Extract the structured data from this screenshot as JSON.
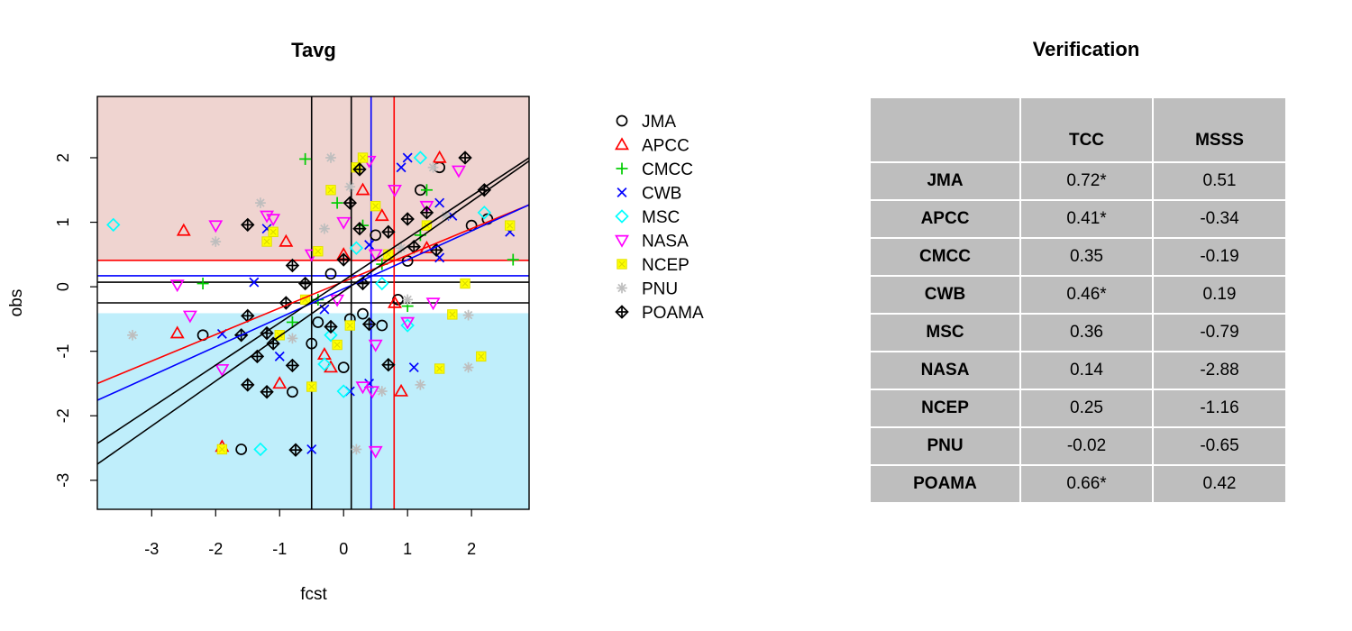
{
  "chart_data": [
    {
      "type": "scatter",
      "title": "Tavg",
      "xlabel": "fcst",
      "ylabel": "obs",
      "xlim": [
        -3.85,
        2.9
      ],
      "ylim": [
        -3.45,
        2.95
      ],
      "x_ticks": [
        -3,
        -2,
        -1,
        0,
        1,
        2
      ],
      "y_ticks": [
        -3,
        -2,
        -1,
        0,
        1,
        2
      ],
      "upper_tercile_shading": {
        "y_from": 0.41,
        "color": "#efd4d0"
      },
      "lower_tercile_shading": {
        "y_to": -0.41,
        "color": "#bfeefb"
      },
      "colors": {
        "JMA": "#000000",
        "APCC": "#ff0000",
        "CMCC": "#00cd00",
        "CWB": "#0000ff",
        "MSC": "#00ffff",
        "NASA": "#ff00ff",
        "NCEP": "#ffff00",
        "PNU": "#bebebe",
        "POAMA": "#000000"
      },
      "reference_lines": {
        "horizontal": [
          {
            "y": 0.41,
            "color": "#ff0000"
          },
          {
            "y": 0.17,
            "color": "#0000ff"
          },
          {
            "y": 0.07,
            "color": "#000000"
          },
          {
            "y": -0.25,
            "color": "#000000"
          }
        ],
        "vertical": [
          {
            "x": -0.5,
            "color": "#000000"
          },
          {
            "x": 0.12,
            "color": "#000000"
          },
          {
            "x": 0.43,
            "color": "#0000ff"
          },
          {
            "x": 0.79,
            "color": "#ff0000"
          }
        ]
      },
      "regression_lines": [
        {
          "series": "APCC",
          "color": "#ff0000",
          "points": [
            [
              -3.85,
              -1.5
            ],
            [
              2.9,
              1.27
            ]
          ]
        },
        {
          "series": "CWB",
          "color": "#0000ff",
          "points": [
            [
              -3.85,
              -1.76
            ],
            [
              2.9,
              1.27
            ]
          ]
        },
        {
          "series": "JMA",
          "color": "#000000",
          "points": [
            [
              -3.85,
              -2.43
            ],
            [
              2.9,
              2.0
            ]
          ]
        },
        {
          "series": "POAMA",
          "color": "#000000",
          "points": [
            [
              -3.85,
              -2.75
            ],
            [
              2.9,
              1.95
            ]
          ]
        }
      ],
      "legend": {
        "position": "right",
        "entries": [
          "JMA",
          "APCC",
          "CMCC",
          "CWB",
          "MSC",
          "NASA",
          "NCEP",
          "PNU",
          "POAMA"
        ]
      },
      "series": [
        {
          "name": "JMA",
          "marker": "circle",
          "points": [
            [
              -2.2,
              -0.75
            ],
            [
              -1.6,
              -2.52
            ],
            [
              -0.4,
              -0.55
            ],
            [
              -0.5,
              -0.88
            ],
            [
              -0.8,
              -1.63
            ],
            [
              0.0,
              -1.25
            ],
            [
              0.1,
              -0.5
            ],
            [
              0.3,
              -0.42
            ],
            [
              0.6,
              -0.6
            ],
            [
              0.85,
              -0.2
            ],
            [
              1.0,
              0.4
            ],
            [
              1.2,
              1.5
            ],
            [
              1.5,
              1.85
            ],
            [
              2.0,
              0.95
            ],
            [
              2.25,
              1.05
            ],
            [
              0.5,
              0.8
            ],
            [
              -0.2,
              0.2
            ]
          ]
        },
        {
          "name": "APCC",
          "marker": "triangle",
          "points": [
            [
              -2.5,
              0.87
            ],
            [
              -2.6,
              -0.72
            ],
            [
              -1.9,
              -2.48
            ],
            [
              -0.9,
              0.7
            ],
            [
              -1.0,
              -1.5
            ],
            [
              -0.3,
              -1.05
            ],
            [
              0.3,
              1.5
            ],
            [
              0.6,
              1.1
            ],
            [
              0.8,
              -0.25
            ],
            [
              0.9,
              -1.62
            ],
            [
              1.3,
              0.6
            ],
            [
              1.5,
              2.0
            ],
            [
              0.0,
              0.5
            ],
            [
              -0.2,
              -1.25
            ]
          ]
        },
        {
          "name": "CMCC",
          "marker": "plus",
          "points": [
            [
              -2.2,
              0.05
            ],
            [
              -0.6,
              1.98
            ],
            [
              -0.8,
              -0.55
            ],
            [
              -0.1,
              1.3
            ],
            [
              0.3,
              0.95
            ],
            [
              0.6,
              0.35
            ],
            [
              1.0,
              -0.3
            ],
            [
              1.3,
              1.5
            ],
            [
              2.65,
              0.42
            ],
            [
              -0.4,
              -0.2
            ],
            [
              1.2,
              0.8
            ]
          ]
        },
        {
          "name": "CWB",
          "marker": "cross",
          "points": [
            [
              -1.9,
              -0.73
            ],
            [
              -1.2,
              0.9
            ],
            [
              -1.4,
              0.07
            ],
            [
              -1.0,
              -1.08
            ],
            [
              -0.5,
              -2.52
            ],
            [
              0.1,
              -1.62
            ],
            [
              0.4,
              -1.5
            ],
            [
              0.9,
              1.85
            ],
            [
              1.0,
              2.0
            ],
            [
              1.5,
              1.3
            ],
            [
              1.7,
              1.1
            ],
            [
              2.6,
              0.85
            ],
            [
              1.1,
              -1.25
            ],
            [
              0.4,
              0.65
            ],
            [
              -0.3,
              -0.35
            ],
            [
              1.5,
              0.45
            ]
          ]
        },
        {
          "name": "MSC",
          "marker": "diamond",
          "points": [
            [
              -3.6,
              0.96
            ],
            [
              -1.3,
              -2.52
            ],
            [
              -0.3,
              -1.2
            ],
            [
              0.0,
              -1.62
            ],
            [
              0.6,
              0.05
            ],
            [
              1.0,
              -0.6
            ],
            [
              1.2,
              2.0
            ],
            [
              2.2,
              1.15
            ],
            [
              -0.2,
              -0.75
            ],
            [
              0.2,
              0.6
            ]
          ]
        },
        {
          "name": "NASA",
          "marker": "triangle-down",
          "points": [
            [
              -2.6,
              0.03
            ],
            [
              -2.0,
              0.95
            ],
            [
              -2.4,
              -0.45
            ],
            [
              -1.9,
              -1.28
            ],
            [
              -1.2,
              1.1
            ],
            [
              -1.1,
              1.05
            ],
            [
              -0.5,
              0.5
            ],
            [
              0.0,
              1.0
            ],
            [
              0.4,
              1.95
            ],
            [
              0.5,
              0.5
            ],
            [
              0.5,
              -0.9
            ],
            [
              0.45,
              -1.62
            ],
            [
              0.5,
              -2.55
            ],
            [
              0.8,
              1.5
            ],
            [
              1.0,
              -0.55
            ],
            [
              1.3,
              1.25
            ],
            [
              1.8,
              1.8
            ],
            [
              1.4,
              -0.25
            ],
            [
              0.3,
              -1.55
            ],
            [
              -0.1,
              -0.2
            ]
          ]
        },
        {
          "name": "NCEP",
          "marker": "square-yellow",
          "points": [
            [
              -1.9,
              -2.52
            ],
            [
              -1.2,
              0.7
            ],
            [
              -1.1,
              0.85
            ],
            [
              -1.0,
              -0.75
            ],
            [
              -0.6,
              -0.2
            ],
            [
              -0.5,
              -1.55
            ],
            [
              -0.4,
              0.55
            ],
            [
              -0.1,
              -0.9
            ],
            [
              0.1,
              -0.6
            ],
            [
              0.2,
              1.85
            ],
            [
              0.3,
              2.0
            ],
            [
              1.3,
              0.95
            ],
            [
              1.7,
              -0.43
            ],
            [
              1.9,
              0.05
            ],
            [
              2.15,
              -1.08
            ],
            [
              2.6,
              0.95
            ],
            [
              1.5,
              -1.27
            ],
            [
              0.5,
              1.25
            ],
            [
              -0.2,
              1.5
            ],
            [
              0.7,
              0.5
            ]
          ]
        },
        {
          "name": "PNU",
          "marker": "asterisk",
          "points": [
            [
              -3.3,
              -0.75
            ],
            [
              -2.0,
              0.7
            ],
            [
              -1.3,
              1.3
            ],
            [
              -0.8,
              -0.8
            ],
            [
              -0.2,
              2.0
            ],
            [
              0.2,
              -2.52
            ],
            [
              0.6,
              -1.62
            ],
            [
              1.0,
              -0.2
            ],
            [
              1.2,
              -1.52
            ],
            [
              1.4,
              1.85
            ],
            [
              1.6,
              1.1
            ],
            [
              1.95,
              -1.25
            ],
            [
              1.95,
              -0.44
            ],
            [
              -0.3,
              0.9
            ],
            [
              0.9,
              0.6
            ],
            [
              0.1,
              1.55
            ]
          ]
        },
        {
          "name": "POAMA",
          "marker": "diamond-plus",
          "points": [
            [
              -1.6,
              -0.75
            ],
            [
              -1.5,
              0.96
            ],
            [
              -1.5,
              -0.45
            ],
            [
              -1.35,
              -1.08
            ],
            [
              -1.5,
              -1.52
            ],
            [
              -1.2,
              -1.63
            ],
            [
              -1.1,
              -0.88
            ],
            [
              -1.2,
              -0.72
            ],
            [
              -0.8,
              0.33
            ],
            [
              -0.9,
              -0.25
            ],
            [
              -0.8,
              -1.22
            ],
            [
              -0.75,
              -2.53
            ],
            [
              -0.6,
              0.05
            ],
            [
              -0.2,
              -0.62
            ],
            [
              0.0,
              0.42
            ],
            [
              0.1,
              1.3
            ],
            [
              0.25,
              1.82
            ],
            [
              0.3,
              0.05
            ],
            [
              0.4,
              -0.58
            ],
            [
              0.7,
              0.85
            ],
            [
              0.7,
              -1.21
            ],
            [
              1.0,
              1.05
            ],
            [
              1.1,
              0.62
            ],
            [
              1.3,
              1.15
            ],
            [
              1.45,
              0.57
            ],
            [
              1.9,
              2.0
            ],
            [
              2.2,
              1.5
            ],
            [
              0.25,
              0.9
            ]
          ]
        }
      ]
    },
    {
      "type": "table",
      "title": "Verification",
      "columns": [
        "",
        "TCC",
        "MSSS"
      ],
      "rows": [
        [
          "JMA",
          "0.72*",
          "0.51"
        ],
        [
          "APCC",
          "0.41*",
          "-0.34"
        ],
        [
          "CMCC",
          "0.35",
          "-0.19"
        ],
        [
          "CWB",
          "0.46*",
          "0.19"
        ],
        [
          "MSC",
          "0.36",
          "-0.79"
        ],
        [
          "NASA",
          "0.14",
          "-2.88"
        ],
        [
          "NCEP",
          "0.25",
          "-1.16"
        ],
        [
          "PNU",
          "-0.02",
          "-0.65"
        ],
        [
          "POAMA",
          "0.66*",
          "0.42"
        ]
      ]
    }
  ]
}
